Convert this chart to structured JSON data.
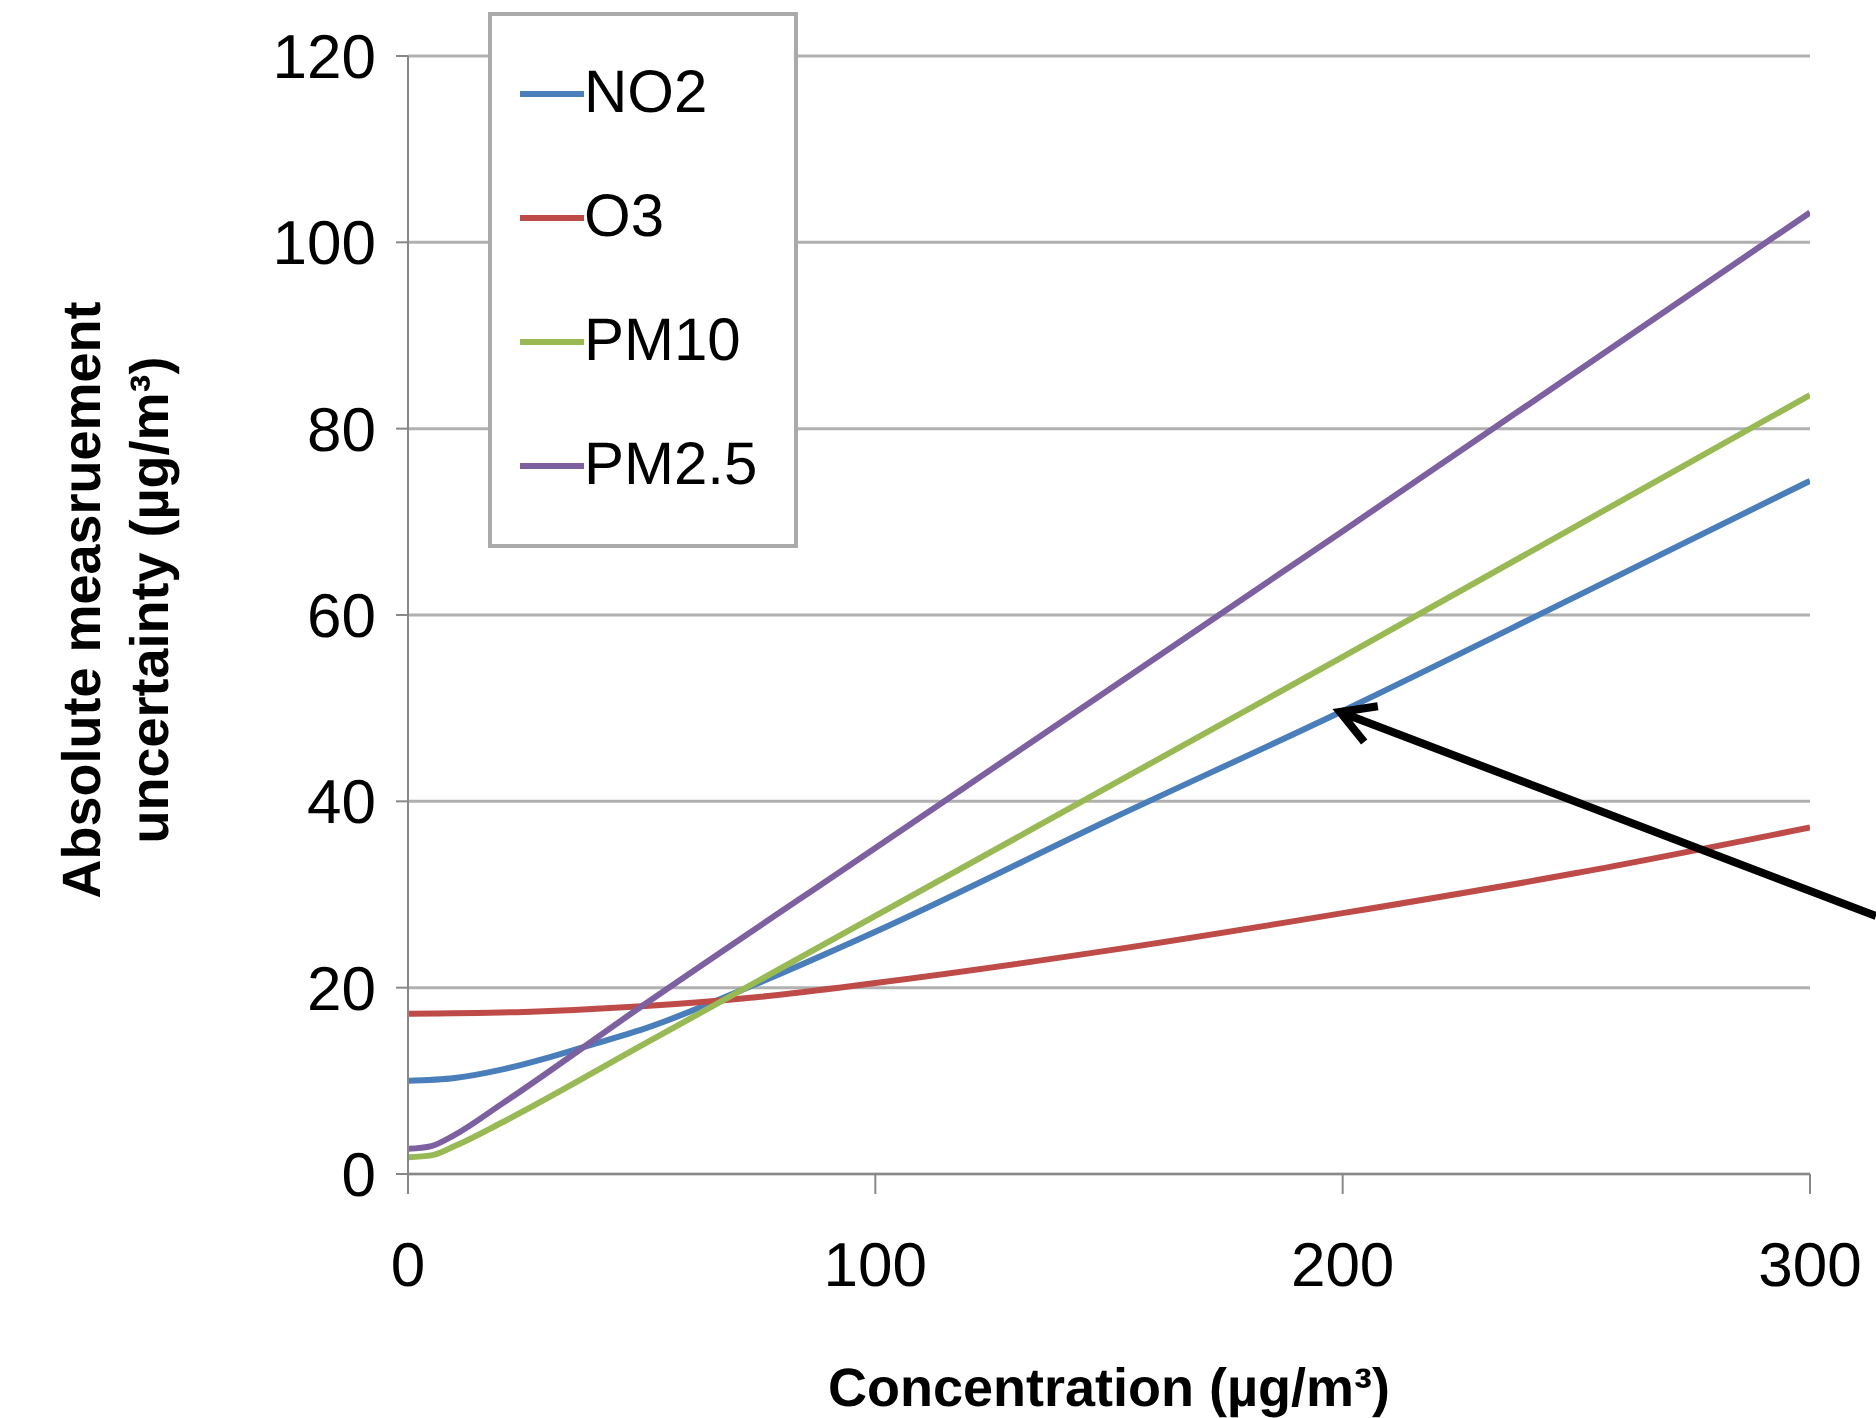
{
  "chart_data": {
    "type": "line",
    "xlabel": "Concentration (µg/m³)",
    "ylabel": "Absolute measruement uncertainty (µg/m³)",
    "xlim": [
      0,
      300
    ],
    "xticks": [
      0,
      100,
      200,
      300
    ],
    "ylim": [
      0,
      120
    ],
    "yticks": [
      0,
      20,
      40,
      60,
      80,
      100,
      120
    ],
    "grid": "y",
    "legend": "top left",
    "marker": "none",
    "line_style": "solid",
    "series": [
      {
        "name": "NO2",
        "color": "#4a7ebb",
        "x": [
          0,
          10,
          20,
          30,
          40,
          50,
          75,
          100,
          150,
          200,
          250,
          300
        ],
        "values": [
          10,
          10.3,
          11.2,
          12.5,
          14,
          15.5,
          20.5,
          26,
          38,
          49.7,
          62,
          74.4
        ]
      },
      {
        "name": "O3",
        "color": "#be4b48",
        "x": [
          0,
          25,
          50,
          75,
          100,
          150,
          200,
          250,
          300
        ],
        "values": [
          17.2,
          17.4,
          18,
          19,
          20.5,
          24,
          28,
          32.3,
          37.2
        ]
      },
      {
        "name": "PM10",
        "color": "#98b954",
        "x": [
          0,
          5,
          10,
          20,
          50,
          100,
          200,
          300
        ],
        "values": [
          1.8,
          2,
          3,
          5.5,
          13.8,
          27.7,
          55.5,
          83.6
        ]
      },
      {
        "name": "PM2.5",
        "color": "#7d60a0",
        "x": [
          0,
          5,
          10,
          20,
          50,
          100,
          200,
          300
        ],
        "values": [
          2.7,
          3,
          4.2,
          7.5,
          18,
          35,
          69,
          103.2
        ]
      }
    ]
  }
}
